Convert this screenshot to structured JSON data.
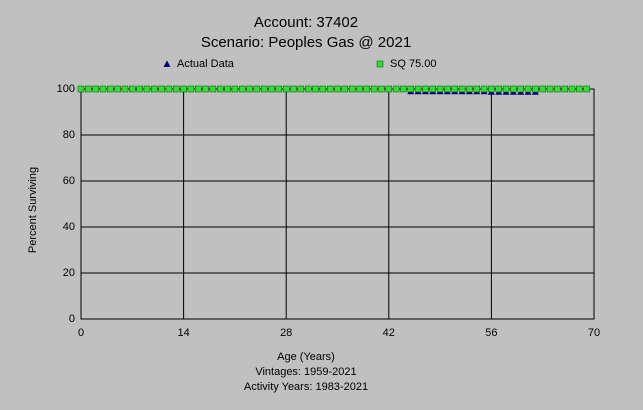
{
  "chart_data": {
    "type": "scatter",
    "title": "Account: 37402",
    "subtitle": "Scenario: Peoples Gas @ 2021",
    "x_label": "Age (Years)",
    "y_label": "Percent Surviving",
    "annotations": [
      "Vintages: 1959-2021",
      "Activity Years: 1983-2021"
    ],
    "xlim": [
      0,
      70
    ],
    "xticks": [
      0,
      14,
      28,
      42,
      56,
      70
    ],
    "ylim": [
      0,
      100
    ],
    "yticks": [
      0,
      20,
      40,
      60,
      80,
      100
    ],
    "grid": true,
    "series": [
      {
        "name": "Actual Data",
        "color": "#000080",
        "marker": "triangle",
        "x": [
          45,
          46,
          47,
          48,
          49,
          50,
          51,
          52,
          53,
          54,
          55,
          56,
          57,
          58,
          59,
          60,
          61,
          62
        ],
        "values": [
          99,
          99,
          99,
          99,
          99,
          99,
          99,
          99,
          99,
          99,
          99,
          98.8,
          98.8,
          98.8,
          98.8,
          98.8,
          98.8,
          98.8
        ]
      },
      {
        "name": "SQ 75.00",
        "color": "#33dd33",
        "marker": "square",
        "x": [
          0,
          1,
          2,
          3,
          4,
          5,
          6,
          7,
          8,
          9,
          10,
          11,
          12,
          13,
          14,
          15,
          16,
          17,
          18,
          19,
          20,
          21,
          22,
          23,
          24,
          25,
          26,
          27,
          28,
          29,
          30,
          31,
          32,
          33,
          34,
          35,
          36,
          37,
          38,
          39,
          40,
          41,
          42,
          43,
          44,
          45,
          46,
          47,
          48,
          49,
          50,
          51,
          52,
          53,
          54,
          55,
          56,
          57,
          58,
          59,
          60,
          61,
          62,
          63,
          64,
          65,
          66,
          67,
          68,
          69
        ],
        "values": [
          100,
          100,
          100,
          100,
          100,
          100,
          100,
          100,
          100,
          100,
          100,
          100,
          100,
          100,
          100,
          100,
          100,
          100,
          100,
          100,
          100,
          100,
          100,
          100,
          100,
          100,
          100,
          100,
          100,
          100,
          100,
          100,
          100,
          100,
          100,
          100,
          100,
          100,
          100,
          100,
          100,
          100,
          100,
          100,
          100,
          100,
          100,
          100,
          100,
          100,
          100,
          100,
          100,
          100,
          100,
          100,
          100,
          100,
          100,
          100,
          100,
          100,
          100,
          100,
          100,
          100,
          100,
          100,
          100,
          100
        ]
      }
    ]
  }
}
